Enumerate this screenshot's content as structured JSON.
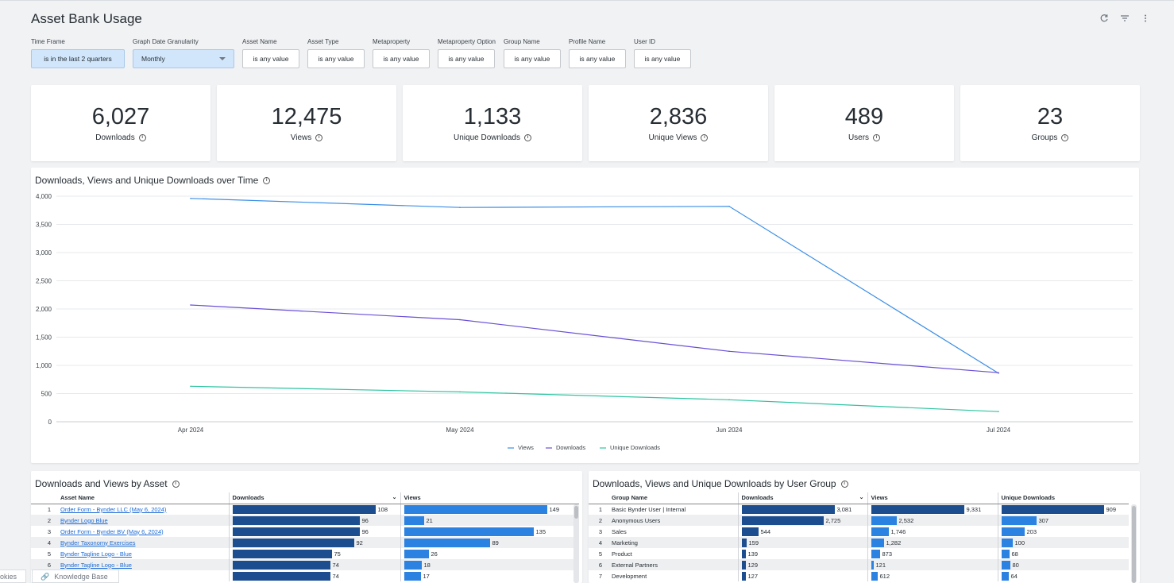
{
  "header": {
    "title": "Asset Bank Usage",
    "icons": [
      "refresh-icon",
      "filter-icon",
      "more-vertical-icon"
    ]
  },
  "filters": [
    {
      "label": "Time Frame",
      "value": "is in the last 2 quarters"
    },
    {
      "label": "Graph Date Granularity",
      "value": "Monthly"
    },
    {
      "label": "Asset Name",
      "value": "is any value"
    },
    {
      "label": "Asset Type",
      "value": "is any value"
    },
    {
      "label": "Metaproperty",
      "value": "is any value"
    },
    {
      "label": "Metaproperty Option",
      "value": "is any value"
    },
    {
      "label": "Group Name",
      "value": "is any value"
    },
    {
      "label": "Profile Name",
      "value": "is any value"
    },
    {
      "label": "User ID",
      "value": "is any value"
    }
  ],
  "tiles": [
    {
      "value": "6,027",
      "label": "Downloads"
    },
    {
      "value": "12,475",
      "label": "Views"
    },
    {
      "value": "1,133",
      "label": "Unique Downloads"
    },
    {
      "value": "2,836",
      "label": "Unique Views"
    },
    {
      "value": "489",
      "label": "Users"
    },
    {
      "value": "23",
      "label": "Groups"
    }
  ],
  "chart_title": "Downloads, Views and Unique Downloads over Time",
  "chart_data": {
    "type": "line",
    "x": [
      "Apr 2024",
      "May 2024",
      "Jun 2024",
      "Jul 2024"
    ],
    "yticks": [
      "0",
      "500",
      "1,000",
      "1,500",
      "2,000",
      "2,500",
      "3,000",
      "3,500",
      "4,000"
    ],
    "ylim": [
      0,
      4000
    ],
    "grid": true,
    "legend_position": "bottom-center",
    "series": [
      {
        "name": "Views",
        "color": "#3a8ee6",
        "values": [
          3960,
          3800,
          3820,
          860
        ]
      },
      {
        "name": "Downloads",
        "color": "#6a4fd6",
        "values": [
          2070,
          1810,
          1250,
          870
        ]
      },
      {
        "name": "Unique Downloads",
        "color": "#2ec4a0",
        "values": [
          630,
          530,
          390,
          180
        ]
      }
    ]
  },
  "asset_table": {
    "title": "Downloads and Views by Asset",
    "columns": [
      "Asset Name",
      "Downloads",
      "Views"
    ],
    "max_downloads": 108,
    "max_views": 149,
    "rows": [
      {
        "n": "1",
        "name": "Order Form - Bynder LLC (May 6, 2024)",
        "downloads": 108,
        "views": 149
      },
      {
        "n": "2",
        "name": "Bynder Logo Blue",
        "downloads": 96,
        "views": 21
      },
      {
        "n": "3",
        "name": "Order Form - Bynder BV (May 6, 2024)",
        "downloads": 96,
        "views": 135
      },
      {
        "n": "4",
        "name": "Bynder Taxonomy Exercises",
        "downloads": 92,
        "views": 89
      },
      {
        "n": "5",
        "name": "Bynder Tagline Logo - Blue",
        "downloads": 75,
        "views": 26
      },
      {
        "n": "6",
        "name": "Bynder Tagline Logo - Blue",
        "downloads": 74,
        "views": 18
      },
      {
        "n": "7",
        "name": "- White",
        "downloads": 74,
        "views": 17
      }
    ]
  },
  "group_table": {
    "title": "Downloads, Views and Unique Downloads by User Group",
    "columns": [
      "Group Name",
      "Downloads",
      "Views",
      "Unique Downloads"
    ],
    "max_downloads": 3081,
    "max_views": 9331,
    "max_unique": 909,
    "rows": [
      {
        "n": "1",
        "name": "Basic Bynder User | Internal",
        "downloads": 3081,
        "downloads_label": "3,081",
        "views": 9331,
        "views_label": "9,331",
        "unique": 909,
        "unique_label": "909"
      },
      {
        "n": "2",
        "name": "Anonymous Users",
        "downloads": 2725,
        "downloads_label": "2,725",
        "views": 2532,
        "views_label": "2,532",
        "unique": 307,
        "unique_label": "307"
      },
      {
        "n": "3",
        "name": "Sales",
        "downloads": 544,
        "downloads_label": "544",
        "views": 1746,
        "views_label": "1,746",
        "unique": 203,
        "unique_label": "203"
      },
      {
        "n": "4",
        "name": "Marketing",
        "downloads": 159,
        "downloads_label": "159",
        "views": 1282,
        "views_label": "1,282",
        "unique": 100,
        "unique_label": "100"
      },
      {
        "n": "5",
        "name": "Product",
        "downloads": 139,
        "downloads_label": "139",
        "views": 873,
        "views_label": "873",
        "unique": 68,
        "unique_label": "68"
      },
      {
        "n": "6",
        "name": "External Partners",
        "downloads": 129,
        "downloads_label": "129",
        "views": 121,
        "views_label": "121",
        "unique": 80,
        "unique_label": "80"
      },
      {
        "n": "7",
        "name": "Development",
        "downloads": 127,
        "downloads_label": "127",
        "views": 612,
        "views_label": "612",
        "unique": 64,
        "unique_label": "64"
      }
    ]
  },
  "footer": {
    "cookies": "okies",
    "knowledge_base": "Knowledge Base"
  }
}
